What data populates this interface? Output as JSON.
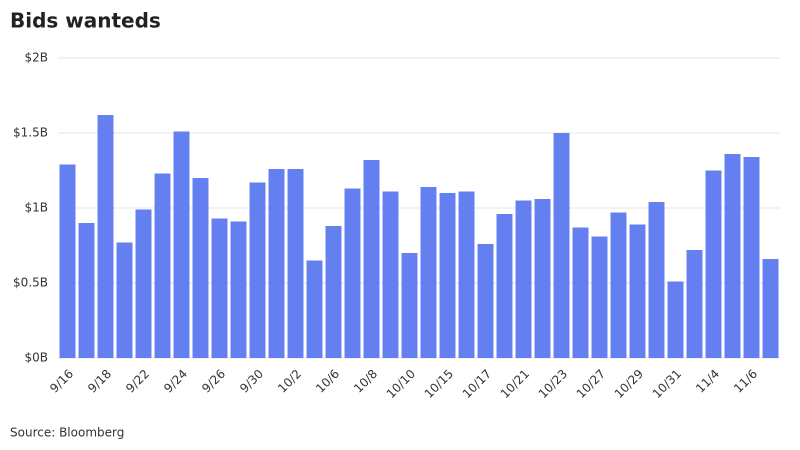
{
  "chart_data": {
    "type": "bar",
    "title": "Bids wanteds",
    "source": "Source: Bloomberg",
    "categories": [
      "9/16",
      null,
      "9/18",
      null,
      "9/22",
      null,
      "9/24",
      null,
      "9/26",
      null,
      "9/30",
      null,
      "10/2",
      null,
      "10/6",
      null,
      "10/8",
      null,
      "10/10",
      null,
      "10/15",
      null,
      "10/17",
      null,
      "10/21",
      null,
      "10/23",
      null,
      "10/27",
      null,
      "10/29",
      null,
      "10/31",
      null,
      "11/4",
      null,
      "11/6",
      null
    ],
    "values": [
      1.29,
      0.9,
      1.62,
      0.77,
      0.99,
      1.23,
      1.51,
      1.2,
      0.93,
      0.91,
      1.17,
      1.26,
      1.26,
      0.65,
      0.88,
      1.13,
      1.32,
      1.11,
      0.7,
      1.14,
      1.1,
      1.11,
      0.76,
      0.96,
      1.05,
      1.06,
      1.5,
      0.87,
      0.81,
      0.97,
      0.89,
      1.04,
      0.51,
      0.72,
      1.25,
      1.36,
      1.34,
      0.66
    ],
    "color": "#6480f0",
    "ylim": [
      0,
      2
    ],
    "yticks": [
      {
        "value": 0,
        "label": "$0B"
      },
      {
        "value": 0.5,
        "label": "$0.5B"
      },
      {
        "value": 1,
        "label": "$1B"
      },
      {
        "value": 1.5,
        "label": "$1.5B"
      },
      {
        "value": 2,
        "label": "$2B"
      }
    ],
    "grid": true
  }
}
